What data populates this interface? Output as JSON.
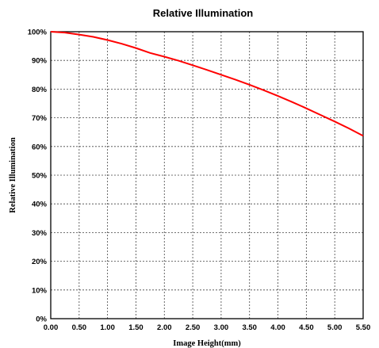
{
  "chart_data": {
    "type": "line",
    "title": "Relative Illumination",
    "xlabel": "Image Height(mm)",
    "ylabel": "Relative Illumination",
    "xlim": [
      0,
      5.5
    ],
    "ylim": [
      0,
      100
    ],
    "x_ticks": [
      "0.00",
      "0.50",
      "1.00",
      "1.50",
      "2.00",
      "2.50",
      "3.00",
      "3.50",
      "4.00",
      "4.50",
      "5.00",
      "5.50"
    ],
    "y_ticks": [
      "0%",
      "10%",
      "20%",
      "30%",
      "40%",
      "50%",
      "60%",
      "70%",
      "80%",
      "90%",
      "100%"
    ],
    "grid": true,
    "legend": "none",
    "series_color": "#ff0000",
    "series": [
      {
        "x": [
          0,
          0.25,
          0.5,
          0.75,
          1.0,
          1.25,
          1.5,
          1.75,
          2.0,
          2.25,
          2.5,
          2.75,
          3.0,
          3.25,
          3.5,
          3.75,
          4.0,
          4.25,
          4.5,
          4.75,
          5.0,
          5.25,
          5.5
        ],
        "y": [
          100,
          99.7,
          99.0,
          98.2,
          97.1,
          95.8,
          94.3,
          92.6,
          91.3,
          89.9,
          88.3,
          86.7,
          85.0,
          83.3,
          81.5,
          79.6,
          77.6,
          75.5,
          73.3,
          71.0,
          68.7,
          66.3,
          63.7
        ]
      }
    ]
  }
}
